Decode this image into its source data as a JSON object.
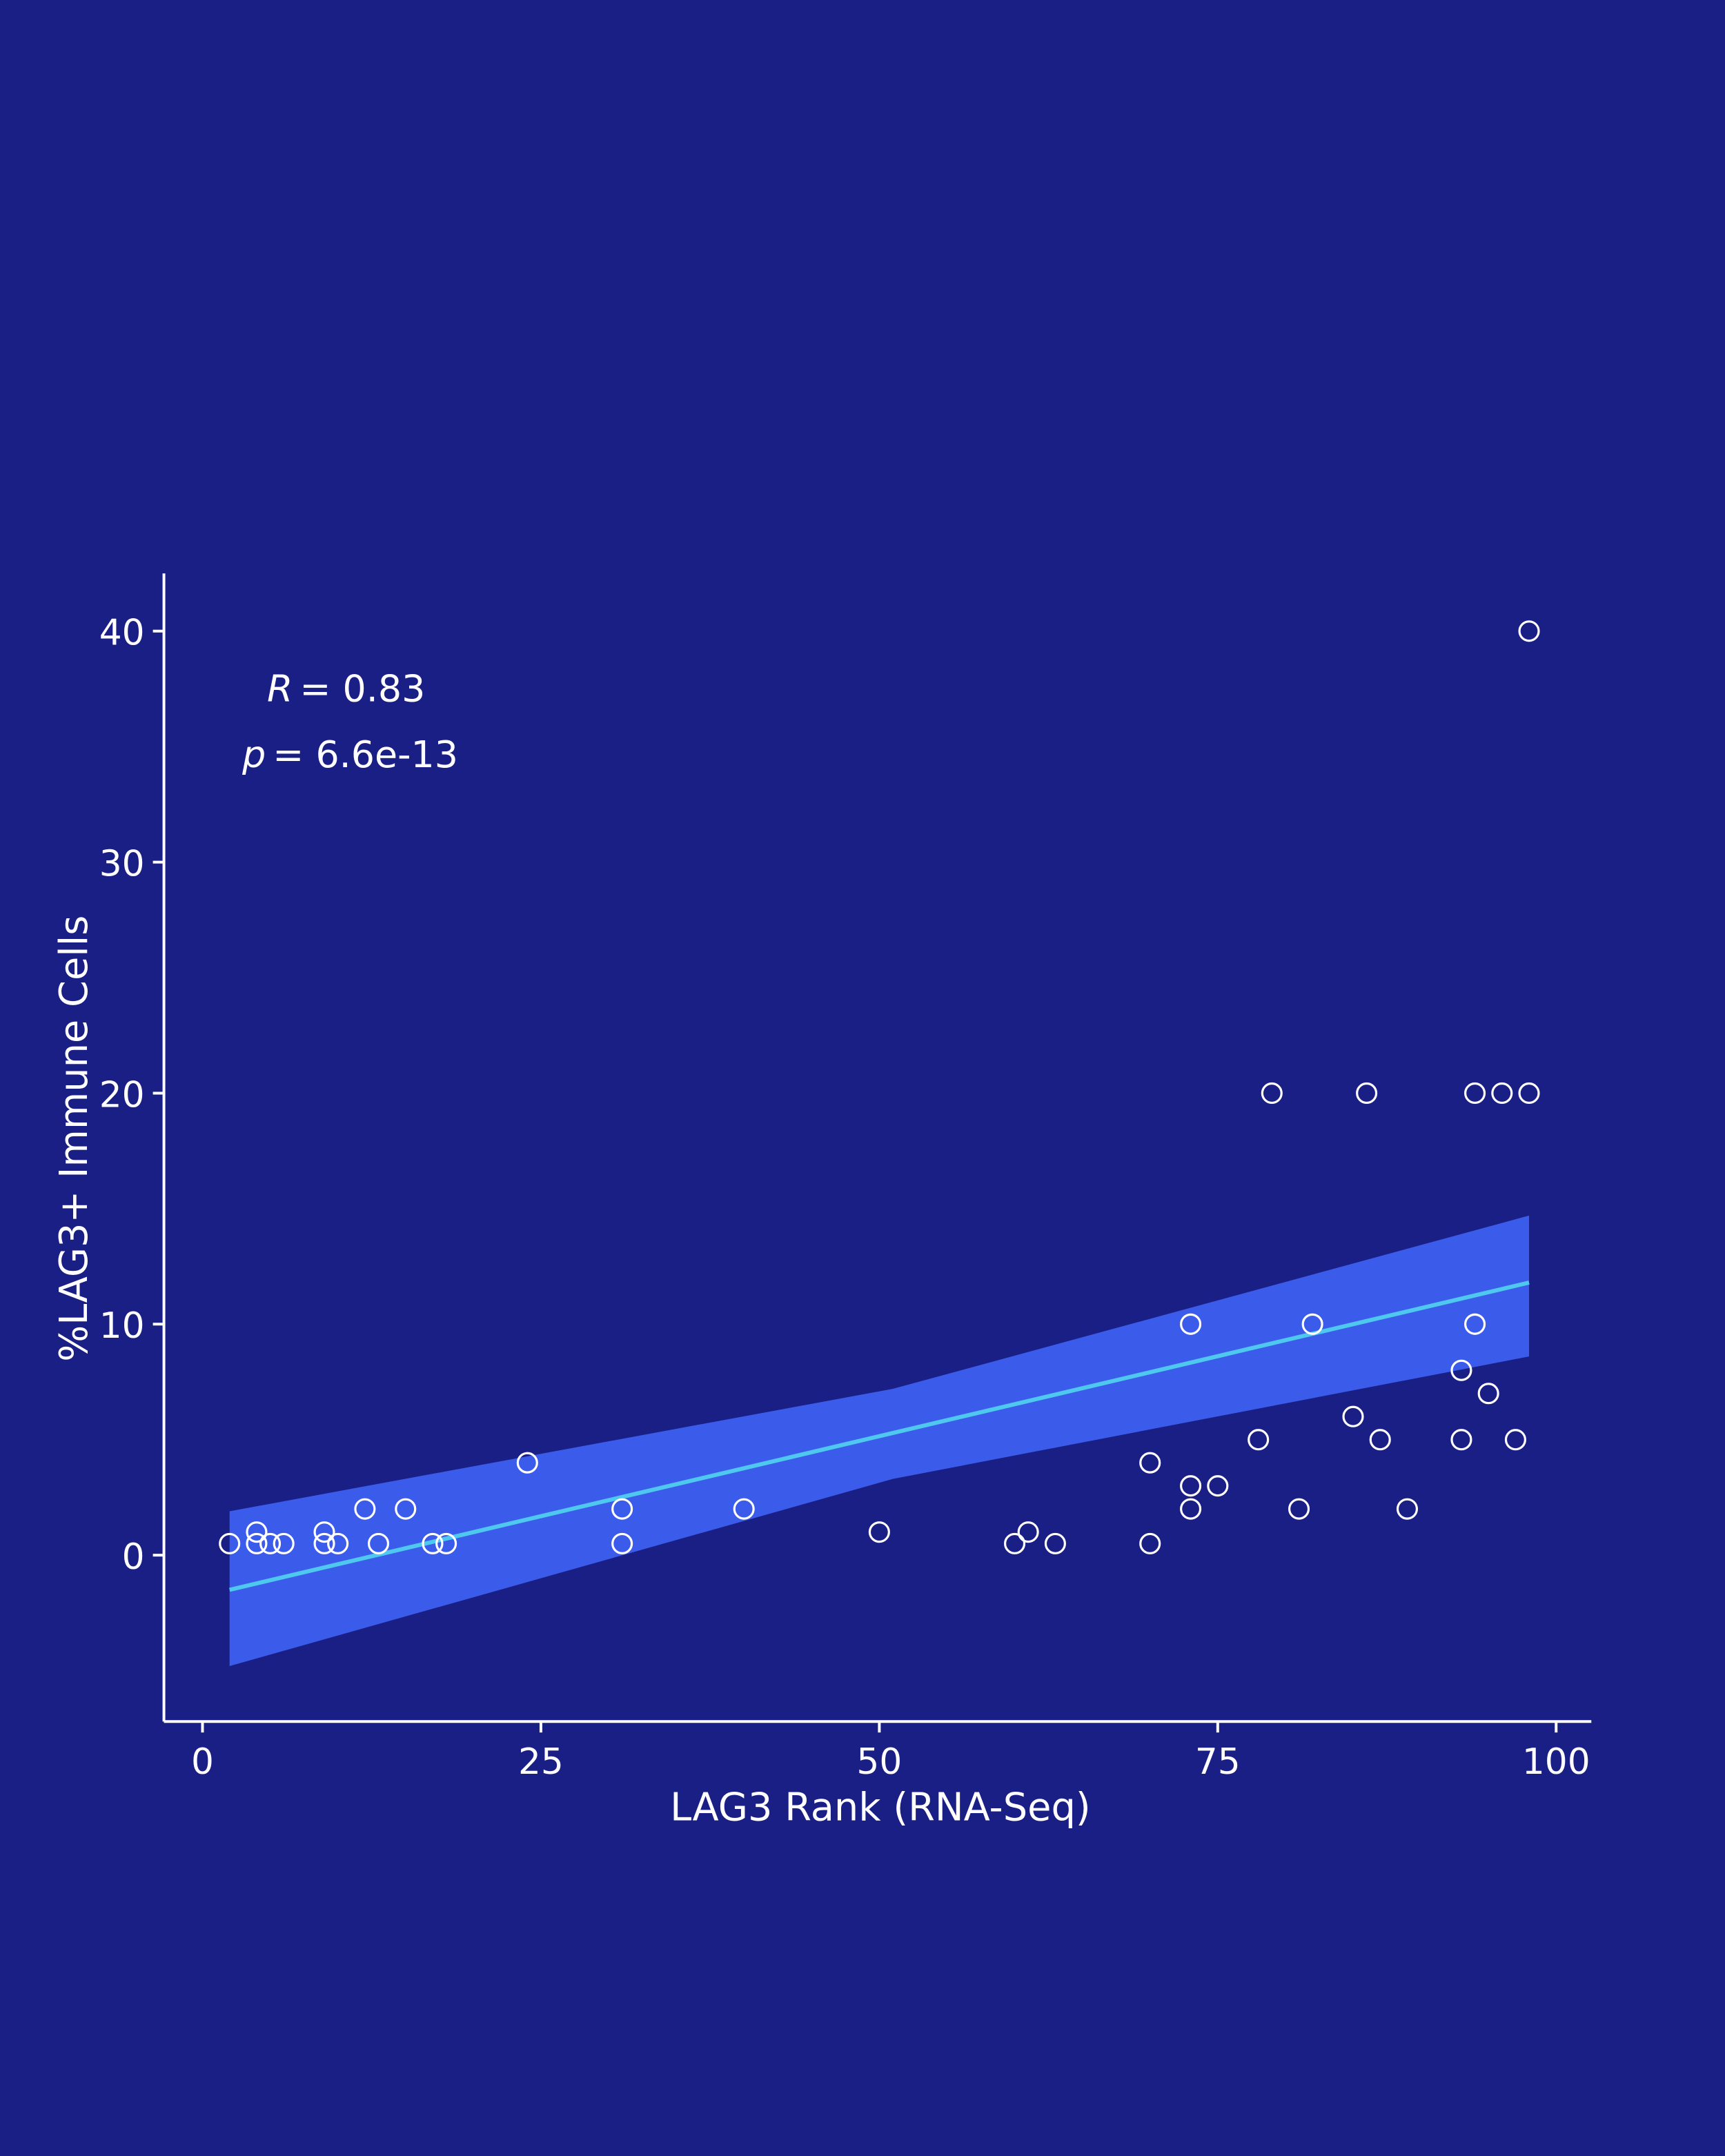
{
  "chart_data": {
    "type": "scatter",
    "x_label": "LAG3 Rank (RNA-Seq)",
    "y_label": "%LAG3+ Immune Cells",
    "annotations": [
      {
        "symbol": "R",
        "text": "= 0.83"
      },
      {
        "symbol": "p",
        "text": "= 6.6e-13"
      }
    ],
    "xlim": [
      -2.85,
      102.6
    ],
    "ylim": [
      -7.2,
      42.5
    ],
    "xticks": [
      0,
      25,
      50,
      75,
      100
    ],
    "yticks": [
      0,
      10,
      20,
      30,
      40
    ],
    "point_color": "#ffffff",
    "x": [
      2,
      4,
      4,
      5,
      6,
      9,
      9,
      10,
      12,
      13,
      15,
      17,
      18,
      24,
      31,
      31,
      40,
      50,
      60,
      61,
      63,
      70,
      70,
      73,
      73,
      73,
      75,
      78,
      79,
      81,
      82,
      85,
      86,
      87,
      89,
      93,
      93,
      94,
      94,
      95,
      96,
      97,
      98,
      98
    ],
    "y": [
      0.5,
      1,
      0.5,
      0.5,
      0.5,
      1,
      0.5,
      0.5,
      2,
      0.5,
      2,
      0.5,
      0.5,
      4,
      2,
      0.5,
      2,
      1,
      0.5,
      1,
      0.5,
      4,
      0.5,
      10,
      3,
      2,
      3,
      5,
      20,
      2,
      10,
      6,
      20,
      5,
      2,
      8,
      5,
      20,
      10,
      7,
      20,
      5,
      40,
      20
    ],
    "fit": {
      "color": "#4fc8f0",
      "x": [
        2,
        98
      ],
      "values": [
        -1.5,
        11.8
      ]
    },
    "band": {
      "color": "#3b5bea",
      "x": [
        2,
        51,
        98
      ],
      "upper": [
        1.9,
        7.2,
        14.7
      ],
      "lower": [
        -4.8,
        3.3,
        8.6
      ]
    }
  }
}
